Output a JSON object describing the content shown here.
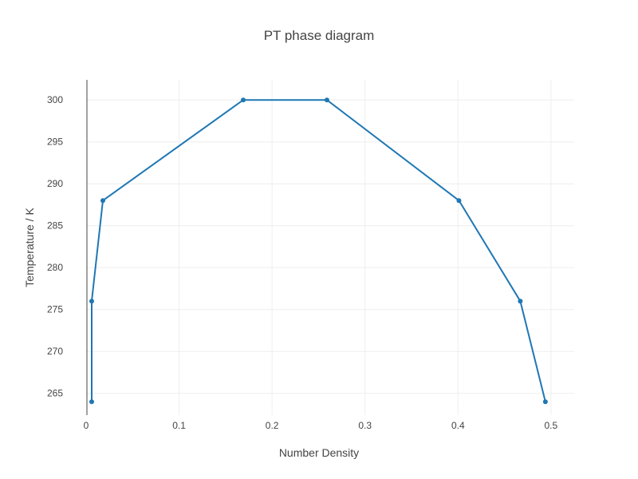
{
  "chart_data": {
    "type": "line",
    "title": "PT phase diagram",
    "xlabel": "Number Density",
    "ylabel": "Temperature / K",
    "xlim": [
      0,
      0.525
    ],
    "ylim": [
      262.4,
      302.4
    ],
    "xticks": [
      0,
      0.1,
      0.2,
      0.3,
      0.4,
      0.5
    ],
    "xtick_labels": [
      "0",
      "0.1",
      "0.2",
      "0.3",
      "0.4",
      "0.5"
    ],
    "yticks": [
      265,
      270,
      275,
      280,
      285,
      290,
      295,
      300
    ],
    "ytick_labels": [
      "265",
      "270",
      "275",
      "280",
      "285",
      "290",
      "295",
      "300"
    ],
    "grid": true,
    "legend": "none",
    "series": [
      {
        "color": "#1f77b4",
        "x": [
          0.006,
          0.006,
          0.018,
          0.169,
          0.259,
          0.401,
          0.467,
          0.494
        ],
        "y": [
          264,
          276,
          288,
          300,
          300,
          288,
          276,
          264
        ]
      }
    ]
  }
}
